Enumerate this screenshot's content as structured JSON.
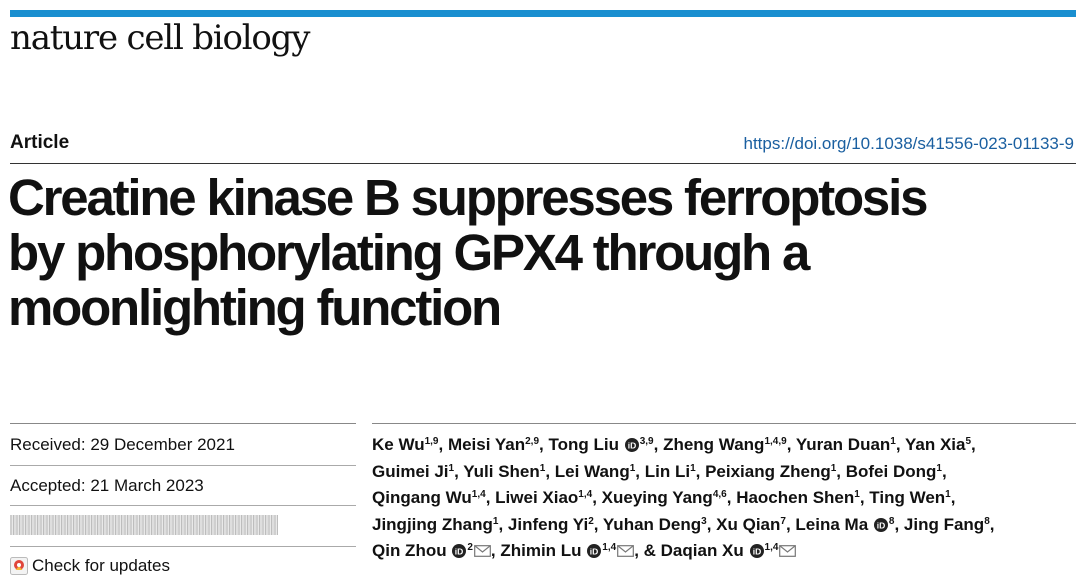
{
  "journal": "nature cell biology",
  "article_type": "Article",
  "doi": "https://doi.org/10.1038/s41556-023-01133-9",
  "title_lines": [
    "Creatine kinase B suppresses ferroptosis",
    "by phosphorylating GPX4 through a",
    "moonlighting function"
  ],
  "received": "Received: 29 December 2021",
  "accepted": "Accepted: 21 March 2023",
  "check_for_updates": "Check for updates",
  "authors": [
    {
      "name": "Ke Wu",
      "aff": "1,9"
    },
    {
      "name": "Meisi Yan",
      "aff": "2,9"
    },
    {
      "name": "Tong Liu",
      "aff": "3,9",
      "orcid": true
    },
    {
      "name": "Zheng Wang",
      "aff": "1,4,9"
    },
    {
      "name": "Yuran Duan",
      "aff": "1"
    },
    {
      "name": "Yan Xia",
      "aff": "5"
    },
    {
      "name": "Guimei Ji",
      "aff": "1"
    },
    {
      "name": "Yuli Shen",
      "aff": "1"
    },
    {
      "name": "Lei Wang",
      "aff": "1"
    },
    {
      "name": "Lin Li",
      "aff": "1"
    },
    {
      "name": "Peixiang Zheng",
      "aff": "1"
    },
    {
      "name": "Bofei Dong",
      "aff": "1"
    },
    {
      "name": "Qingang Wu",
      "aff": "1,4"
    },
    {
      "name": "Liwei Xiao",
      "aff": "1,4"
    },
    {
      "name": "Xueying Yang",
      "aff": "4,6"
    },
    {
      "name": "Haochen Shen",
      "aff": "1"
    },
    {
      "name": "Ting Wen",
      "aff": "1"
    },
    {
      "name": "Jingjing Zhang",
      "aff": "1"
    },
    {
      "name": "Jinfeng Yi",
      "aff": "2"
    },
    {
      "name": "Yuhan Deng",
      "aff": "3"
    },
    {
      "name": "Xu Qian",
      "aff": "7"
    },
    {
      "name": "Leina Ma",
      "aff": "8",
      "orcid": true
    },
    {
      "name": "Jing Fang",
      "aff": "8"
    },
    {
      "name": "Qin Zhou",
      "aff": "2",
      "orcid": true,
      "mail": true
    },
    {
      "name": "Zhimin Lu",
      "aff": "1,4",
      "orcid": true,
      "mail": true
    },
    {
      "name": "Daqian Xu",
      "aff": "1,4",
      "orcid": true,
      "mail": true
    }
  ],
  "author_line_breaks": [
    6,
    12,
    17,
    23,
    26
  ],
  "final_conjunction": "& ",
  "colors": {
    "accent": "#1a8fd0",
    "link": "#1a5fa0",
    "orcid": "#a6ce39"
  }
}
